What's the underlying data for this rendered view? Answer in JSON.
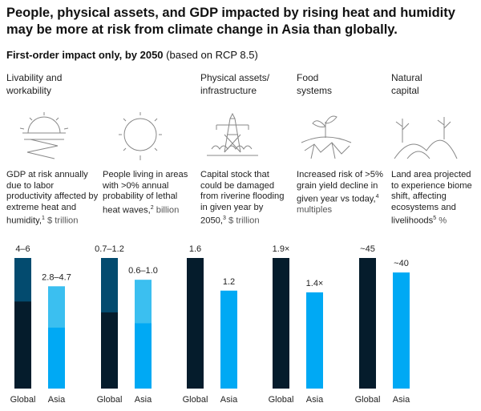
{
  "title": "People, physical assets, and GDP impacted by rising heat and humidity may be more at risk from climate change in Asia than globally.",
  "subtitle": {
    "bold": "First-order impact only, by 2050",
    "normal": " (based on RCP 8.5)"
  },
  "categories": [
    {
      "label": "Livability and workability",
      "icon": "sun-heat-icon"
    },
    {
      "label": "",
      "icon": "sun-icon"
    },
    {
      "label": "Physical assets/ infrastructure",
      "icon": "flooded-power-tower-icon"
    },
    {
      "label": "Food systems",
      "icon": "plant-dry-soil-icon"
    },
    {
      "label": "Natural capital",
      "icon": "landscape-trees-icon"
    }
  ],
  "descriptions": [
    {
      "text": "GDP at risk annually due to labor productivity affected by extreme heat and humidity,",
      "note": "1",
      "unit": " $ trillion"
    },
    {
      "text": "People living in areas with >0% annual probability of lethal heat waves,",
      "note": "2",
      "unit": " billion"
    },
    {
      "text": "Capital stock that could be damaged from riverine flooding in given year by 2050,",
      "note": "3",
      "unit": " $ trillion"
    },
    {
      "text": "Increased risk of >5% grain yield decline in given year vs today,",
      "note": "4",
      "unit": " multiples"
    },
    {
      "text": "Land area projected to experience biome shift, affecting ecosystems and livelihoods",
      "note": "5",
      "unit": " %"
    }
  ],
  "colors": {
    "global": "#051c2c",
    "global_range": "#034b6f",
    "asia": "#00a9f4",
    "asia_range": "#3bbff0"
  },
  "chart_data": [
    {
      "type": "bar",
      "categories": [
        "Global",
        "Asia"
      ],
      "series": [
        {
          "values": [
            [
              4,
              6
            ],
            [
              2.8,
              4.7
            ]
          ]
        }
      ],
      "data_labels": [
        "4–6",
        "2.8–4.7"
      ]
    },
    {
      "type": "bar",
      "categories": [
        "Global",
        "Asia"
      ],
      "series": [
        {
          "values": [
            [
              0.7,
              1.2
            ],
            [
              0.6,
              1.0
            ]
          ]
        }
      ],
      "data_labels": [
        "0.7–1.2",
        "0.6–1.0"
      ]
    },
    {
      "type": "bar",
      "categories": [
        "Global",
        "Asia"
      ],
      "series": [
        {
          "values": [
            [
              1.6
            ],
            [
              1.2
            ]
          ]
        }
      ],
      "data_labels": [
        "1.6",
        "1.2"
      ]
    },
    {
      "type": "bar",
      "categories": [
        "Global",
        "Asia"
      ],
      "series": [
        {
          "values": [
            [
              1.9
            ],
            [
              1.4
            ]
          ]
        }
      ],
      "data_labels": [
        "1.9×",
        "1.4×"
      ]
    },
    {
      "type": "bar",
      "categories": [
        "Global",
        "Asia"
      ],
      "series": [
        {
          "values": [
            [
              45
            ],
            [
              40
            ]
          ]
        }
      ],
      "data_labels": [
        "~45",
        "~40"
      ]
    }
  ]
}
